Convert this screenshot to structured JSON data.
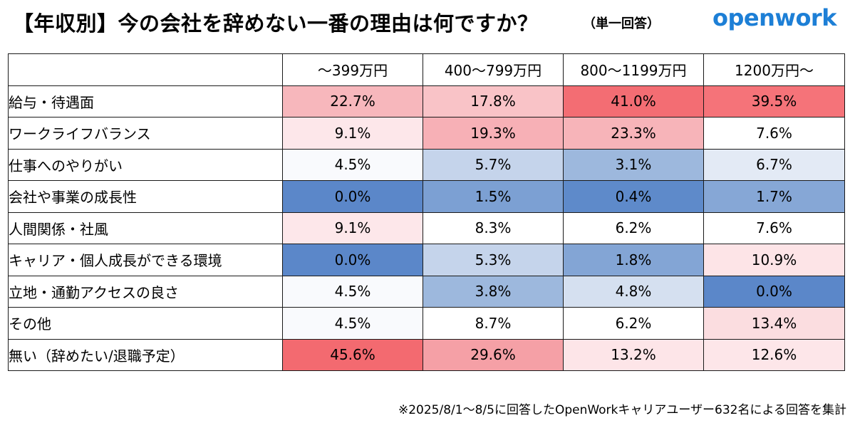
{
  "header": {
    "title": "【年収別】今の会社を辞めない一番の理由は何ですか？",
    "subtitle": "（単一回答）",
    "logo_text": "openwork"
  },
  "chart_data": {
    "type": "table",
    "title": "【年収別】今の会社を辞めない一番の理由は何ですか？",
    "subtitle": "（単一回答）",
    "columns": [
      "〜399万円",
      "400〜799万円",
      "800〜1199万円",
      "1200万円〜"
    ],
    "rows": [
      {
        "label": "給与・待遇面",
        "values": [
          "22.7%",
          "17.8%",
          "41.0%",
          "39.5%"
        ],
        "colors": [
          "#f7b7bc",
          "#f9c3c7",
          "#f36d73",
          "#f57379"
        ]
      },
      {
        "label": "ワークライフバランス",
        "values": [
          "9.1%",
          "19.3%",
          "23.3%",
          "7.6%"
        ],
        "colors": [
          "#fde7ea",
          "#f7b0b6",
          "#f7b4b9",
          "#ffffff"
        ]
      },
      {
        "label": "仕事へのやりがい",
        "values": [
          "4.5%",
          "5.7%",
          "3.1%",
          "6.7%"
        ],
        "colors": [
          "#f9fafd",
          "#c5d4eb",
          "#9db8dd",
          "#e3eaf5"
        ]
      },
      {
        "label": "会社や事業の成長性",
        "values": [
          "0.0%",
          "1.5%",
          "0.4%",
          "1.7%"
        ],
        "colors": [
          "#5b87c9",
          "#7ca0d3",
          "#5e8aca",
          "#86a7d6"
        ]
      },
      {
        "label": "人間関係・社風",
        "values": [
          "9.1%",
          "8.3%",
          "6.2%",
          "7.6%"
        ],
        "colors": [
          "#fde7ea",
          "#ffffff",
          "#ffffff",
          "#ffffff"
        ]
      },
      {
        "label": "キャリア・個人成長ができる環境",
        "values": [
          "0.0%",
          "5.3%",
          "1.8%",
          "10.9%"
        ],
        "colors": [
          "#5b87c9",
          "#c5d4eb",
          "#83a5d5",
          "#fde4e7"
        ]
      },
      {
        "label": "立地・通勤アクセスの良さ",
        "values": [
          "4.5%",
          "3.8%",
          "4.8%",
          "0.0%"
        ],
        "colors": [
          "#f9fafd",
          "#9db8dd",
          "#d5e0f0",
          "#5b87c9"
        ]
      },
      {
        "label": "その他",
        "values": [
          "4.5%",
          "8.7%",
          "6.2%",
          "13.4%"
        ],
        "colors": [
          "#f9fafd",
          "#ffffff",
          "#ffffff",
          "#fbdde0"
        ]
      },
      {
        "label": "無い（辞めたい/退職予定）",
        "values": [
          "45.6%",
          "29.6%",
          "13.2%",
          "12.6%"
        ],
        "colors": [
          "#f36a70",
          "#f5a0a6",
          "#fde5e8",
          "#fde6e9"
        ]
      }
    ]
  },
  "footnote": "※2025/8/1〜8/5に回答したOpenWorkキャリアユーザー632名による回答を集計"
}
